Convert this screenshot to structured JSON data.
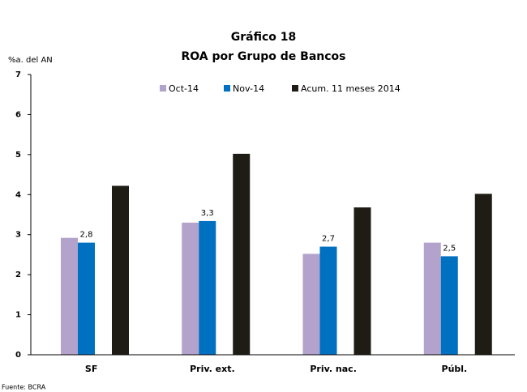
{
  "chart_data": {
    "type": "bar",
    "title": "Gráfico 18",
    "subtitle": "ROA por Grupo de Bancos",
    "y_label": "%a. del AN",
    "source": "Fuente: BCRA",
    "categories": [
      "SF",
      "Priv. ext.",
      "Priv. nac.",
      "Públ."
    ],
    "series": [
      {
        "name": "Oct-14",
        "color": "#b3a3cc",
        "values": [
          2.92,
          3.3,
          2.52,
          2.8
        ]
      },
      {
        "name": "Nov-14",
        "color": "#0070c0",
        "values": [
          2.8,
          3.34,
          2.7,
          2.46
        ],
        "value_labels": [
          "2,8",
          "3,3",
          "2,7",
          "2,5"
        ]
      },
      {
        "name": "Acum. 11 meses 2014",
        "color": "#1e1c14",
        "values": [
          4.22,
          5.02,
          3.68,
          4.02
        ]
      }
    ],
    "ylim": [
      0,
      7
    ],
    "yticks": [
      0,
      1,
      2,
      3,
      4,
      5,
      6,
      7
    ],
    "grid": false
  }
}
